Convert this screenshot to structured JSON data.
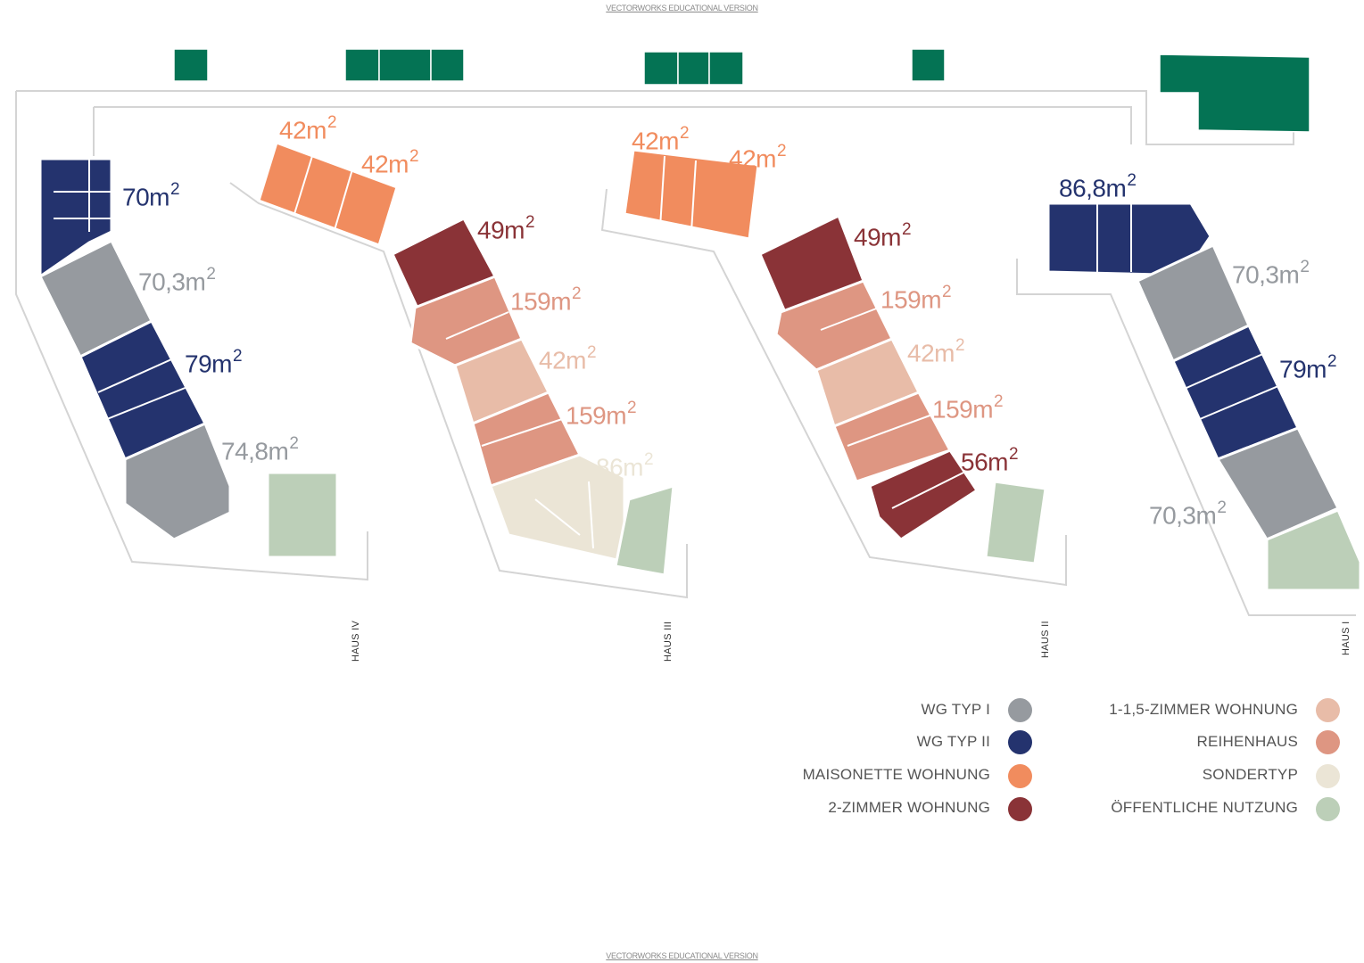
{
  "watermark_top": "VECTORWORKS EDUCATIONAL VERSION",
  "watermark_bottom": "VECTORWORKS EDUCATIONAL VERSION",
  "colors": {
    "wg1": "#969a9f",
    "wg2": "#24336e",
    "maison": "#f18c5e",
    "zimmer2": "#8a3337",
    "zimmer1": "#e8bca8",
    "reihen": "#de9682",
    "sonder": "#ebe5d6",
    "public": "#bccfb8",
    "green": "#047354",
    "outline": "#d4d4d4"
  },
  "houses": {
    "haus4": "HAUS IV",
    "haus3": "HAUS III",
    "haus2": "HAUS II",
    "haus1": "HAUS I"
  },
  "areas": {
    "h4_wg2_top": "70m",
    "h4_wg1_1": "70,3m",
    "h4_wg2_2": "79m",
    "h4_wg1_2": "74,8m",
    "h3_mais_1": "42m",
    "h3_mais_2": "42m",
    "h3_2zi": "49m",
    "h3_reihen_1": "159m",
    "h3_1zi": "42m",
    "h3_reihen_2": "159m",
    "h3_sonder": "86m",
    "h2_mais_1": "42m",
    "h2_mais_2": "42m",
    "h2_2zi": "49m",
    "h2_reihen_1": "159m",
    "h2_1zi": "42m",
    "h2_reihen_2": "159m",
    "h2_2zi_b": "56m",
    "h1_wg2_top": "86,8m",
    "h1_wg1_1": "70,3m",
    "h1_wg2_2": "79m",
    "h1_wg1_2": "70,3m",
    "exponent": "2"
  },
  "legend": {
    "left": [
      {
        "label": "WG TYP I",
        "color": "#969a9f"
      },
      {
        "label": "WG TYP II",
        "color": "#24336e"
      },
      {
        "label": "MAISONETTE WOHNUNG",
        "color": "#f18c5e"
      },
      {
        "label": "2-ZIMMER WOHNUNG",
        "color": "#8a3337"
      }
    ],
    "right": [
      {
        "label": "1-1,5-ZIMMER WOHNUNG",
        "color": "#e8bca8"
      },
      {
        "label": "REIHENHAUS",
        "color": "#de9682"
      },
      {
        "label": "SONDERTYP",
        "color": "#ebe5d6"
      },
      {
        "label": "ÖFFENTLICHE NUTZUNG",
        "color": "#bccfb8"
      }
    ]
  }
}
